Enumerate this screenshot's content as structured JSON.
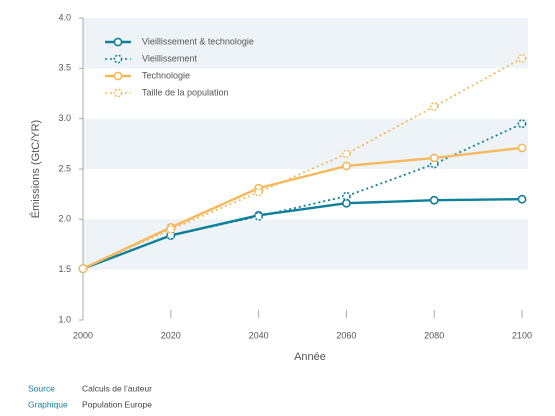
{
  "chart_data": {
    "type": "line",
    "y_label": "Émissions (GtC/YR)",
    "x_label": "Année",
    "x": [
      2000,
      2020,
      2040,
      2060,
      2080,
      2100
    ],
    "xlim": [
      2000,
      2100
    ],
    "xticks": [
      2000,
      2020,
      2040,
      2060,
      2080,
      2100
    ],
    "ylim": [
      1,
      4
    ],
    "yticks": [
      {
        "value": 1,
        "label": "1.0"
      },
      1.5,
      {
        "value": 2,
        "label": "2.0"
      },
      2.5,
      {
        "value": 3,
        "label": "3.0"
      },
      3.5,
      {
        "value": 4,
        "label": "4.0"
      }
    ],
    "grid": true,
    "legend": "upper left",
    "series": [
      {
        "name": "Vieillissement & technologie",
        "color": "#0f7f9a",
        "dashed": false,
        "values": [
          1.51,
          1.84,
          2.04,
          2.16,
          2.19,
          2.2
        ]
      },
      {
        "name": "Vieillissement",
        "color": "#0f7f9a",
        "dashed": true,
        "values": [
          1.51,
          1.84,
          2.03,
          2.23,
          2.55,
          2.95
        ]
      },
      {
        "name": "Technologie",
        "color": "#f5b85c",
        "dashed": false,
        "values": [
          1.51,
          1.92,
          2.31,
          2.53,
          2.61,
          2.71
        ]
      },
      {
        "name": "Taille de la population",
        "color": "#f5b85c",
        "dashed": true,
        "values": [
          1.51,
          1.9,
          2.27,
          2.65,
          3.12,
          3.6
        ]
      }
    ]
  },
  "footer": [
    {
      "label": "Source",
      "text": "Calculs de l’auteur"
    },
    {
      "label": "Graphique",
      "text": "Population Europe"
    }
  ]
}
